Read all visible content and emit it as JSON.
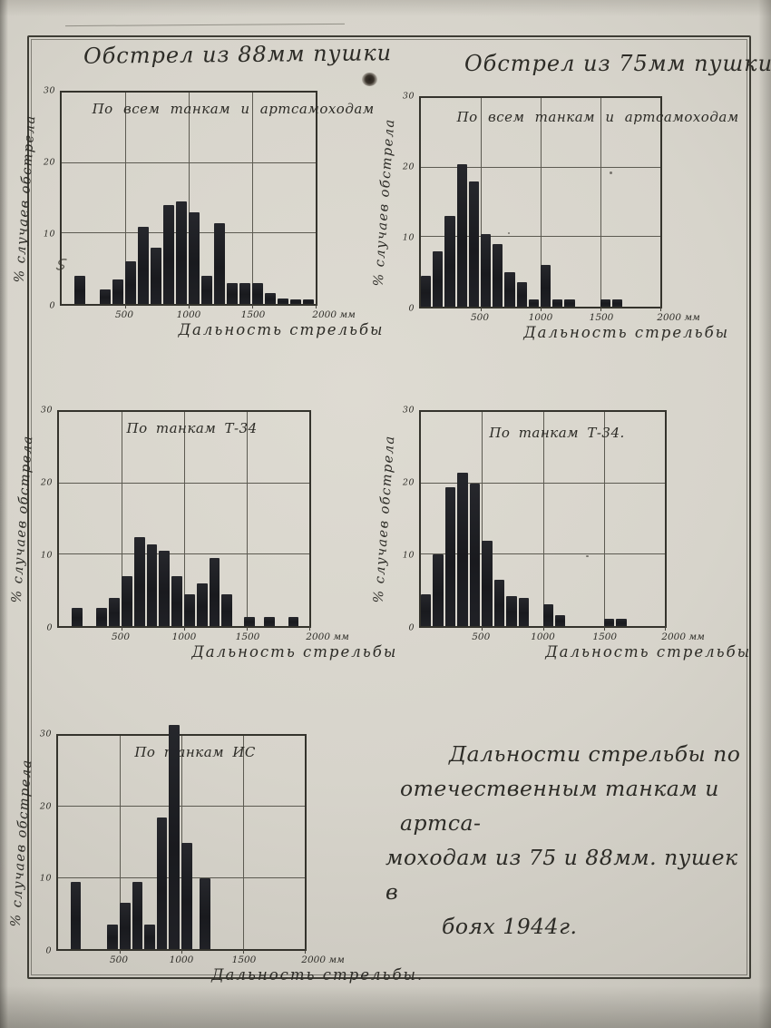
{
  "page": {
    "column_titles": {
      "left": "Обстрел из 88мм пушки",
      "right": "Обстрел из 75мм пушки."
    },
    "caption": {
      "lines": [
        "Дальности стрельбы по",
        "отечественным танкам и артса-",
        "моходам из 75 и 88мм. пушек в",
        "боях 1944г."
      ]
    }
  },
  "chart_data": [
    {
      "type": "bar",
      "title": "По всем танкам и артсамоходам",
      "ylabel": "% случаев обстрела",
      "xlabel": "Дальность стрельбы",
      "x_ticks": [
        "500",
        "1000",
        "1500",
        "2000 мм"
      ],
      "x_tick_values": [
        500,
        1000,
        1500,
        2000
      ],
      "y_ticks": [
        0,
        10,
        20,
        30
      ],
      "ylim": [
        0,
        30
      ],
      "xlim": [
        0,
        2000
      ],
      "bin_width_m": 100,
      "bars": [
        {
          "x": 100,
          "v": 4
        },
        {
          "x": 300,
          "v": 2
        },
        {
          "x": 400,
          "v": 3.5
        },
        {
          "x": 500,
          "v": 6
        },
        {
          "x": 600,
          "v": 11
        },
        {
          "x": 700,
          "v": 8
        },
        {
          "x": 800,
          "v": 14
        },
        {
          "x": 900,
          "v": 14.5
        },
        {
          "x": 1000,
          "v": 13
        },
        {
          "x": 1100,
          "v": 4
        },
        {
          "x": 1200,
          "v": 11.5
        },
        {
          "x": 1300,
          "v": 3
        },
        {
          "x": 1400,
          "v": 3
        },
        {
          "x": 1500,
          "v": 3
        },
        {
          "x": 1600,
          "v": 1.5
        },
        {
          "x": 1700,
          "v": 0.8
        },
        {
          "x": 1800,
          "v": 0.7
        },
        {
          "x": 1900,
          "v": 0.7
        }
      ]
    },
    {
      "type": "bar",
      "title": "По всем танкам и артсамоходам",
      "ylabel": "% случаев обстрела",
      "xlabel": "Дальность стрельбы",
      "x_ticks": [
        "500",
        "1000",
        "1500",
        "2000 мм"
      ],
      "x_tick_values": [
        500,
        1000,
        1500,
        2000
      ],
      "y_ticks": [
        0,
        10,
        20,
        30
      ],
      "ylim": [
        0,
        30
      ],
      "xlim": [
        0,
        2000
      ],
      "bin_width_m": 100,
      "bars": [
        {
          "x": 0,
          "v": 4.5
        },
        {
          "x": 100,
          "v": 8
        },
        {
          "x": 200,
          "v": 13
        },
        {
          "x": 300,
          "v": 20.5
        },
        {
          "x": 400,
          "v": 18
        },
        {
          "x": 500,
          "v": 10.5
        },
        {
          "x": 600,
          "v": 9
        },
        {
          "x": 700,
          "v": 5
        },
        {
          "x": 800,
          "v": 3.5
        },
        {
          "x": 900,
          "v": 1
        },
        {
          "x": 1000,
          "v": 6
        },
        {
          "x": 1100,
          "v": 1
        },
        {
          "x": 1200,
          "v": 1
        },
        {
          "x": 1500,
          "v": 1
        },
        {
          "x": 1600,
          "v": 1
        }
      ]
    },
    {
      "type": "bar",
      "title": "По танкам Т-34",
      "ylabel": "% случаев обстрела",
      "xlabel": "Дальность стрельбы",
      "x_ticks": [
        "500",
        "1000",
        "1500",
        "2000 мм"
      ],
      "x_tick_values": [
        500,
        1000,
        1500,
        2000
      ],
      "y_ticks": [
        0,
        10,
        20,
        30
      ],
      "ylim": [
        0,
        30
      ],
      "xlim": [
        0,
        2000
      ],
      "bin_width_m": 100,
      "bars": [
        {
          "x": 100,
          "v": 2.5
        },
        {
          "x": 300,
          "v": 2.5
        },
        {
          "x": 400,
          "v": 4
        },
        {
          "x": 500,
          "v": 7
        },
        {
          "x": 600,
          "v": 12.5
        },
        {
          "x": 700,
          "v": 11.5
        },
        {
          "x": 800,
          "v": 10.5
        },
        {
          "x": 900,
          "v": 7
        },
        {
          "x": 1000,
          "v": 4.5
        },
        {
          "x": 1100,
          "v": 6
        },
        {
          "x": 1200,
          "v": 9.5
        },
        {
          "x": 1300,
          "v": 4.5
        },
        {
          "x": 1480,
          "v": 1.3
        },
        {
          "x": 1640,
          "v": 1.3
        },
        {
          "x": 1830,
          "v": 1.3
        }
      ]
    },
    {
      "type": "bar",
      "title": "По танкам Т-34.",
      "ylabel": "% случаев обстрела",
      "xlabel": "Дальность стрельбы",
      "x_ticks": [
        "500",
        "1000",
        "1500",
        "2000 мм"
      ],
      "x_tick_values": [
        500,
        1000,
        1500,
        2000
      ],
      "y_ticks": [
        0,
        10,
        20,
        30
      ],
      "ylim": [
        0,
        30
      ],
      "xlim": [
        0,
        2000
      ],
      "bin_width_m": 100,
      "bars": [
        {
          "x": 0,
          "v": 4.5
        },
        {
          "x": 100,
          "v": 10
        },
        {
          "x": 200,
          "v": 19.5
        },
        {
          "x": 300,
          "v": 21.5
        },
        {
          "x": 400,
          "v": 20
        },
        {
          "x": 500,
          "v": 12
        },
        {
          "x": 600,
          "v": 6.5
        },
        {
          "x": 700,
          "v": 4.2
        },
        {
          "x": 800,
          "v": 4
        },
        {
          "x": 1000,
          "v": 3
        },
        {
          "x": 1100,
          "v": 1.5
        },
        {
          "x": 1500,
          "v": 1
        },
        {
          "x": 1600,
          "v": 1
        }
      ]
    },
    {
      "type": "bar",
      "title": "По танкам ИС",
      "ylabel": "% случаев обстрела",
      "xlabel": "Дальность стрельбы.",
      "x_ticks": [
        "500",
        "1000",
        "1500",
        "2000 мм"
      ],
      "x_tick_values": [
        500,
        1000,
        1500,
        2000
      ],
      "y_ticks": [
        0,
        10,
        20,
        30
      ],
      "ylim": [
        0,
        30
      ],
      "xlim": [
        0,
        2000
      ],
      "bin_width_m": 100,
      "bars": [
        {
          "x": 100,
          "v": 9.5
        },
        {
          "x": 400,
          "v": 3.5
        },
        {
          "x": 500,
          "v": 6.5
        },
        {
          "x": 600,
          "v": 9.5
        },
        {
          "x": 700,
          "v": 3.5
        },
        {
          "x": 800,
          "v": 18.5
        },
        {
          "x": 900,
          "v": 31.5
        },
        {
          "x": 1000,
          "v": 15
        },
        {
          "x": 1150,
          "v": 10
        }
      ]
    }
  ]
}
